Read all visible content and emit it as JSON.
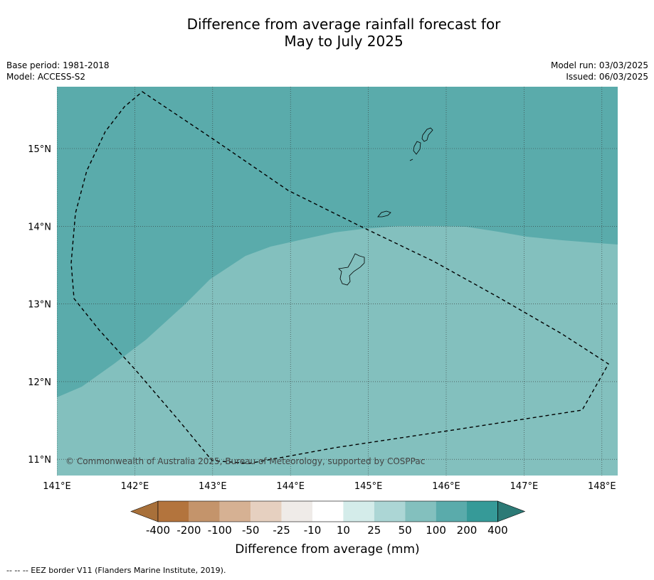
{
  "title": {
    "line1": "Difference from average rainfall forecast for",
    "line2": "May to July 2025"
  },
  "meta_left": {
    "base_period": "Base period: 1981-2018",
    "model": "Model: ACCESS-S2"
  },
  "meta_right": {
    "model_run": "Model run: 03/03/2025",
    "issued": "Issued: 06/03/2025"
  },
  "map": {
    "lon_range": [
      141.0,
      148.2
    ],
    "lat_range": [
      10.8,
      15.8
    ],
    "x_ticks": [
      "141°E",
      "142°E",
      "143°E",
      "144°E",
      "145°E",
      "146°E",
      "147°E",
      "148°E"
    ],
    "y_ticks": [
      "11°N",
      "12°N",
      "13°N",
      "14°N",
      "15°N"
    ],
    "gridlines": true,
    "copyright": "© Commonwealth of Australia 2025, Bureau of Meteorology, supported by COSPPac",
    "fill_colors": {
      "100_to_200": "#5aabab",
      "50_to_100": "#83c0be"
    }
  },
  "colorbar": {
    "title": "Difference from average (mm)",
    "labels": [
      "-400",
      "-200",
      "-100",
      "-50",
      "-25",
      "-10",
      "10",
      "25",
      "50",
      "100",
      "200",
      "400"
    ],
    "colors": [
      "#a8703a",
      "#b3743d",
      "#c4946b",
      "#d6b193",
      "#e6d0c0",
      "#efebe8",
      "#ffffff",
      "#d4ecea",
      "#acd6d5",
      "#83c0be",
      "#5aabab",
      "#369a98",
      "#2c7a76"
    ]
  },
  "footer": "--  --  -- EEZ border V11 (Flanders Marine Institute, 2019)."
}
